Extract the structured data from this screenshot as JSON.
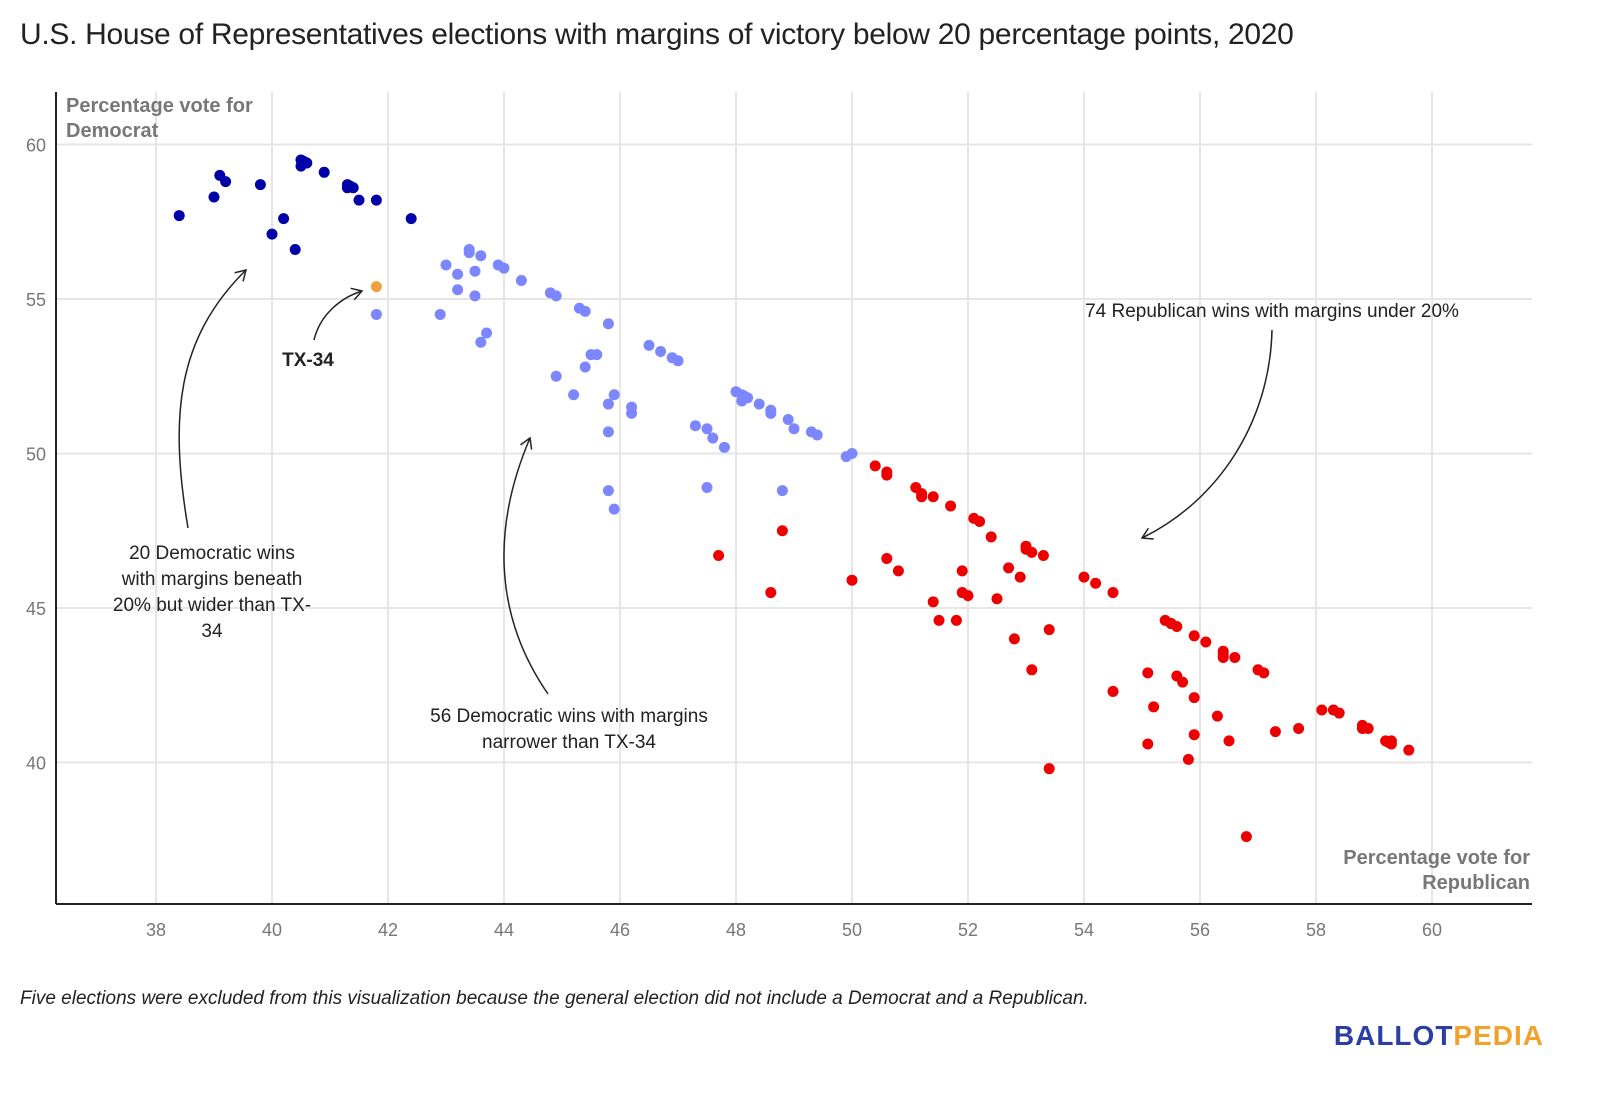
{
  "title": "U.S. House of Representatives elections with margins of victory below 20 percentage points, 2020",
  "footnote": "Five elections were excluded from this visualization because the general election did not include a Democrat and a Republican.",
  "logo": {
    "part1": "BALLOT",
    "part2": "PEDIA"
  },
  "chart_data": {
    "type": "scatter",
    "title": "U.S. House of Representatives elections with margins of victory below 20 percentage points, 2020",
    "xlabel": "Percentage vote for Republican",
    "ylabel": "Percentage vote for Democrat",
    "xlim": [
      36.2,
      61.8
    ],
    "ylim": [
      35.3,
      61.7
    ],
    "x_ticks": [
      38,
      40,
      42,
      44,
      46,
      48,
      50,
      52,
      54,
      56,
      58,
      60
    ],
    "y_ticks": [
      40,
      45,
      50,
      55,
      60
    ],
    "grid": true,
    "legend": "none",
    "series": [
      {
        "name": "20 Democratic wins with margins beneath 20% but wider than TX-34",
        "color": "#0000a8",
        "points": [
          [
            38.4,
            57.7
          ],
          [
            39.0,
            58.3
          ],
          [
            39.1,
            59.0
          ],
          [
            39.2,
            58.8
          ],
          [
            39.8,
            58.7
          ],
          [
            40.0,
            57.1
          ],
          [
            40.2,
            57.6
          ],
          [
            40.4,
            56.6
          ],
          [
            40.5,
            59.5
          ],
          [
            40.5,
            59.3
          ],
          [
            40.6,
            59.4
          ],
          [
            40.9,
            59.1
          ],
          [
            41.3,
            58.7
          ],
          [
            41.3,
            58.6
          ],
          [
            41.4,
            58.6
          ],
          [
            41.5,
            58.2
          ],
          [
            41.8,
            58.2
          ],
          [
            42.4,
            57.6
          ],
          [
            40.55,
            59.45
          ],
          [
            41.35,
            58.65
          ]
        ]
      },
      {
        "name": "TX-34",
        "color": "#f2a03d",
        "points": [
          [
            41.8,
            55.4
          ]
        ]
      },
      {
        "name": "56 Democratic wins with margins narrower than TX-34",
        "color": "#7b86ff",
        "points": [
          [
            41.8,
            54.5
          ],
          [
            42.9,
            54.5
          ],
          [
            43.0,
            56.1
          ],
          [
            43.2,
            55.8
          ],
          [
            43.2,
            55.3
          ],
          [
            43.4,
            56.6
          ],
          [
            43.4,
            56.5
          ],
          [
            43.5,
            55.9
          ],
          [
            43.5,
            55.1
          ],
          [
            43.6,
            56.4
          ],
          [
            43.6,
            53.6
          ],
          [
            43.7,
            53.9
          ],
          [
            43.9,
            56.1
          ],
          [
            44.0,
            56.0
          ],
          [
            44.3,
            55.6
          ],
          [
            44.8,
            55.2
          ],
          [
            44.9,
            55.1
          ],
          [
            44.9,
            52.5
          ],
          [
            45.2,
            51.9
          ],
          [
            45.3,
            54.7
          ],
          [
            45.4,
            54.6
          ],
          [
            45.4,
            52.8
          ],
          [
            45.5,
            53.2
          ],
          [
            45.6,
            53.2
          ],
          [
            45.8,
            54.2
          ],
          [
            45.8,
            51.6
          ],
          [
            45.8,
            50.7
          ],
          [
            45.8,
            48.8
          ],
          [
            45.9,
            51.9
          ],
          [
            45.9,
            48.2
          ],
          [
            46.2,
            51.5
          ],
          [
            46.2,
            51.3
          ],
          [
            46.5,
            53.5
          ],
          [
            46.7,
            53.3
          ],
          [
            46.9,
            53.1
          ],
          [
            47.0,
            53.0
          ],
          [
            47.3,
            50.9
          ],
          [
            47.5,
            50.8
          ],
          [
            47.5,
            48.9
          ],
          [
            47.6,
            50.5
          ],
          [
            47.8,
            50.2
          ],
          [
            48.0,
            52.0
          ],
          [
            48.1,
            51.9
          ],
          [
            48.1,
            51.7
          ],
          [
            48.2,
            51.8
          ],
          [
            48.4,
            51.6
          ],
          [
            48.6,
            51.4
          ],
          [
            48.6,
            51.3
          ],
          [
            48.8,
            48.8
          ],
          [
            48.9,
            51.1
          ],
          [
            49.0,
            50.8
          ],
          [
            49.3,
            50.7
          ],
          [
            49.4,
            50.6
          ],
          [
            49.9,
            49.9
          ],
          [
            50.0,
            50.0
          ],
          [
            48.15,
            51.85
          ]
        ]
      },
      {
        "name": "74 Republican wins with margins under 20%",
        "color": "#ee0000",
        "points": [
          [
            47.7,
            46.7
          ],
          [
            48.6,
            45.5
          ],
          [
            48.8,
            47.5
          ],
          [
            50.0,
            45.9
          ],
          [
            50.4,
            49.6
          ],
          [
            50.6,
            49.4
          ],
          [
            50.6,
            49.3
          ],
          [
            50.6,
            46.6
          ],
          [
            50.8,
            46.2
          ],
          [
            51.1,
            48.9
          ],
          [
            51.2,
            48.6
          ],
          [
            51.4,
            48.6
          ],
          [
            51.4,
            45.2
          ],
          [
            51.5,
            44.6
          ],
          [
            51.7,
            48.3
          ],
          [
            51.8,
            44.6
          ],
          [
            51.9,
            46.2
          ],
          [
            51.9,
            45.5
          ],
          [
            52.0,
            45.4
          ],
          [
            52.1,
            47.9
          ],
          [
            52.2,
            47.8
          ],
          [
            52.4,
            47.3
          ],
          [
            52.5,
            45.3
          ],
          [
            52.7,
            46.3
          ],
          [
            52.8,
            44.0
          ],
          [
            52.9,
            46.0
          ],
          [
            53.0,
            47.0
          ],
          [
            53.1,
            46.8
          ],
          [
            53.1,
            43.0
          ],
          [
            53.3,
            46.7
          ],
          [
            53.4,
            44.3
          ],
          [
            53.4,
            39.8
          ],
          [
            54.0,
            46.0
          ],
          [
            54.2,
            45.8
          ],
          [
            54.5,
            45.5
          ],
          [
            54.5,
            42.3
          ],
          [
            55.1,
            42.9
          ],
          [
            55.1,
            40.6
          ],
          [
            55.2,
            41.8
          ],
          [
            55.4,
            44.6
          ],
          [
            55.5,
            44.5
          ],
          [
            55.6,
            44.4
          ],
          [
            55.6,
            42.8
          ],
          [
            55.7,
            42.6
          ],
          [
            55.8,
            40.1
          ],
          [
            55.9,
            44.1
          ],
          [
            55.9,
            42.1
          ],
          [
            55.9,
            40.9
          ],
          [
            56.1,
            43.9
          ],
          [
            56.3,
            41.5
          ],
          [
            56.4,
            43.6
          ],
          [
            56.4,
            43.4
          ],
          [
            56.5,
            40.7
          ],
          [
            56.6,
            43.4
          ],
          [
            56.8,
            37.6
          ],
          [
            57.0,
            43.0
          ],
          [
            57.1,
            42.9
          ],
          [
            57.3,
            41.0
          ],
          [
            57.7,
            41.1
          ],
          [
            58.1,
            41.7
          ],
          [
            58.3,
            41.7
          ],
          [
            58.4,
            41.6
          ],
          [
            58.8,
            41.2
          ],
          [
            58.8,
            41.1
          ],
          [
            58.9,
            41.1
          ],
          [
            59.2,
            40.7
          ],
          [
            59.3,
            40.7
          ],
          [
            59.3,
            40.6
          ],
          [
            59.6,
            40.4
          ],
          [
            56.4,
            43.5
          ],
          [
            55.5,
            44.5
          ],
          [
            53.0,
            46.9
          ],
          [
            51.2,
            48.7
          ],
          [
            59.25,
            40.65
          ]
        ]
      }
    ],
    "annotations": [
      {
        "text": [
          "20 Democratic wins",
          "with margins beneath",
          "20% but wider than TX-",
          "34"
        ]
      },
      {
        "text": [
          "TX-34"
        ]
      },
      {
        "text": [
          "56 Democratic wins with margins",
          "narrower than TX-34"
        ]
      },
      {
        "text": [
          "74 Republican wins with margins under 20%"
        ]
      }
    ]
  }
}
